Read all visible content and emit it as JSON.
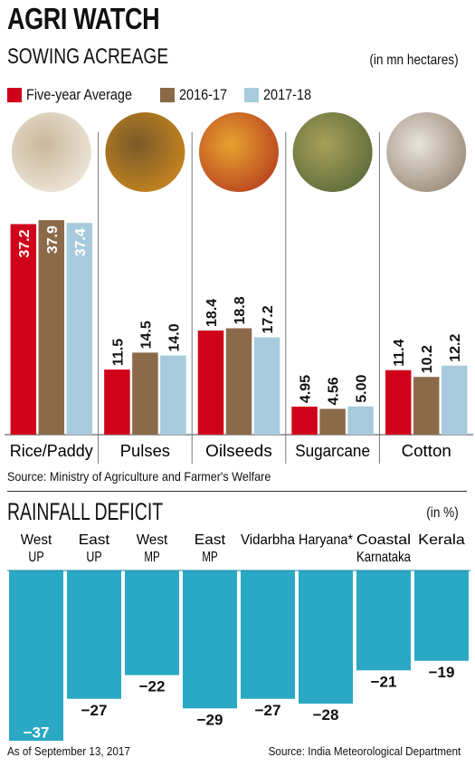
{
  "header": {
    "title": "AGRI WATCH",
    "subtitle": "SOWING ACREAGE",
    "unit": "(in mn hectares)"
  },
  "legend": [
    {
      "label": "Five-year Average",
      "color": "#d0021b"
    },
    {
      "label": "2016-17",
      "color": "#8b6a4a"
    },
    {
      "label": "2017-18",
      "color": "#a7cbdc"
    }
  ],
  "source_top": "Source: Ministry of Agriculture and Farmer's Welfare",
  "rainfall_header": {
    "title": "RAINFALL DEFICIT",
    "unit": "(in %)"
  },
  "footnote": "As of September 13, 2017",
  "source_bottom": "Source: India Meteorological Department",
  "crop_icons": [
    "rice-grains-photo",
    "pulses-photo",
    "oilseeds-photo",
    "sugarcane-photo",
    "cotton-photo"
  ],
  "chart_data": [
    {
      "type": "bar",
      "title": "SOWING ACREAGE",
      "unit": "mn hectares",
      "categories": [
        "Rice/Paddy",
        "Pulses",
        "Oilseeds",
        "Sugarcane",
        "Cotton"
      ],
      "series": [
        {
          "name": "Five-year Average",
          "color": "#d0021b",
          "values": [
            37.2,
            11.5,
            18.4,
            4.95,
            11.4
          ],
          "labels": [
            "37.2",
            "11.5",
            "18.4",
            "4.95",
            "11.4"
          ]
        },
        {
          "name": "2016-17",
          "color": "#8b6a4a",
          "values": [
            37.9,
            14.5,
            18.8,
            4.56,
            10.2
          ],
          "labels": [
            "37.9",
            "14.5",
            "18.8",
            "4.56",
            "10.2"
          ]
        },
        {
          "name": "2017-18",
          "color": "#a7cbdc",
          "values": [
            37.4,
            14.0,
            17.2,
            5.0,
            12.2
          ],
          "labels": [
            "37.4",
            "14.0",
            "17.2",
            "5.00",
            "12.2"
          ]
        }
      ],
      "ylim": [
        0,
        40
      ],
      "grid": false,
      "legend_position": "top-left"
    },
    {
      "type": "bar",
      "title": "RAINFALL DEFICIT",
      "unit": "%",
      "categories": [
        [
          "West",
          "UP"
        ],
        [
          "East",
          "UP"
        ],
        [
          "West",
          "MP"
        ],
        [
          "East",
          "MP"
        ],
        [
          "Vidarbha"
        ],
        [
          "Haryana*"
        ],
        [
          "Coastal",
          "Karnataka"
        ],
        [
          "Kerala"
        ]
      ],
      "values": [
        -37,
        -27,
        -22,
        -29,
        -27,
        -28,
        -21,
        -19
      ],
      "labels": [
        "-37",
        "-27",
        "-22",
        "-29",
        "-27",
        "-28",
        "-21",
        "-19"
      ],
      "color": "#2aa8c4",
      "ylim": [
        -40,
        0
      ],
      "grid": false
    }
  ]
}
